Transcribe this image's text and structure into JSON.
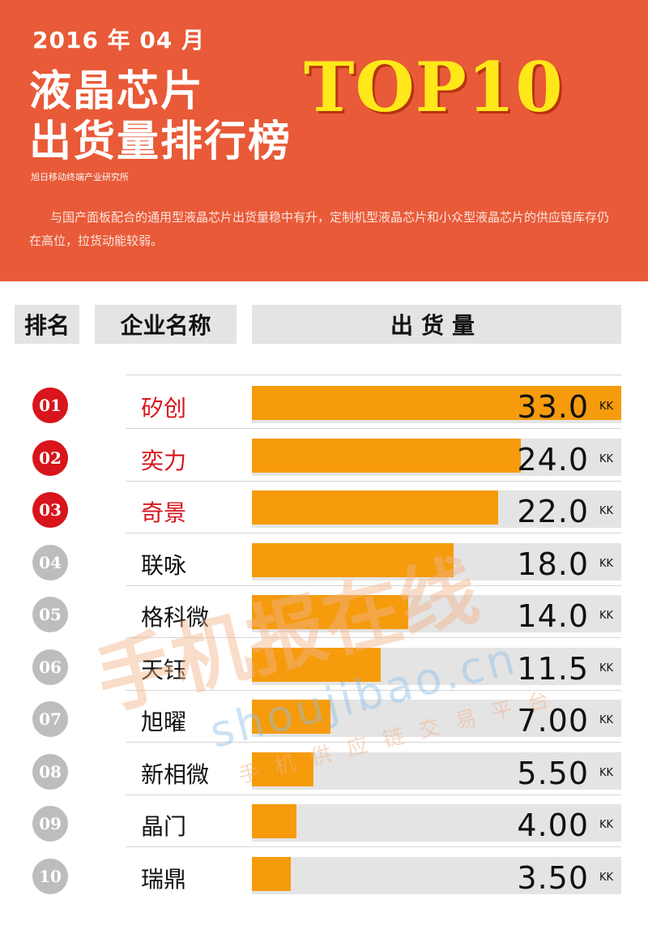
{
  "header": {
    "date": "2016 年 04 月",
    "title_line1": "液晶芯片",
    "title_line2": "出货量排行榜",
    "badge": "TOP10",
    "source": "旭日移动终端产业研究所",
    "description": "与国产面板配合的通用型液晶芯片出货量稳中有升，定制机型液晶芯片和小众型液晶芯片的供应链库存仍在高位，拉货动能较弱。"
  },
  "columns": {
    "rank": "排名",
    "company": "企业名称",
    "shipment": "出货量"
  },
  "colors": {
    "header_bg": "#e85a38",
    "badge_text": "#ffe81a",
    "bar": "#f59b0c",
    "track": "#e4e4e4",
    "top_rank_circle": "#d8141c",
    "top_rank_text": "#d8141c",
    "other_rank_circle": "#bdbdbd"
  },
  "watermark": {
    "brand": "手机报在线",
    "url": "shoujibao.cn",
    "slogan": "手机供应链交易平台"
  },
  "chart_data": {
    "type": "bar",
    "orientation": "horizontal",
    "unit": "KK",
    "xlim": [
      0,
      33
    ],
    "categories": [
      "矽创",
      "奕力",
      "奇景",
      "联咏",
      "格科微",
      "天钰",
      "旭曜",
      "新相微",
      "晶门",
      "瑞鼎"
    ],
    "ranks": [
      "01",
      "02",
      "03",
      "04",
      "05",
      "06",
      "07",
      "08",
      "09",
      "10"
    ],
    "values": [
      33.0,
      24.0,
      22.0,
      18.0,
      14.0,
      11.5,
      7.0,
      5.5,
      4.0,
      3.5
    ],
    "value_labels": [
      "33.0",
      "24.0",
      "22.0",
      "18.0",
      "14.0",
      "11.5",
      "7.00",
      "5.50",
      "4.00",
      "3.50"
    ]
  }
}
